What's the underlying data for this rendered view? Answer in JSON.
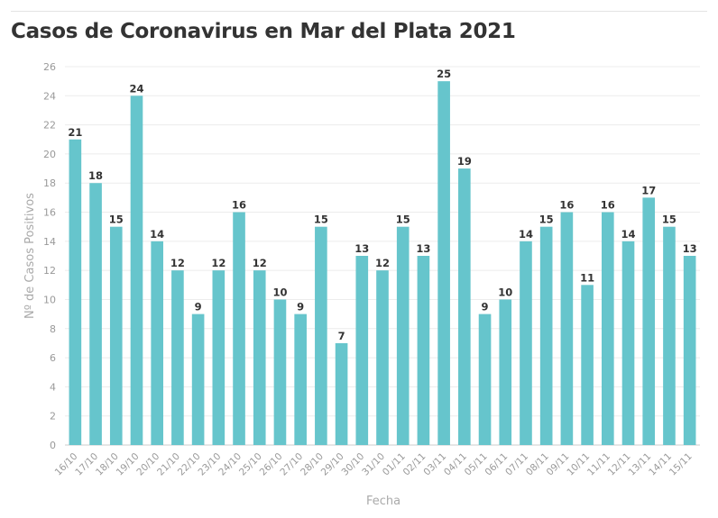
{
  "chart_data": {
    "type": "bar",
    "title": "Casos de Coronavirus en Mar del Plata 2021",
    "xlabel": "Fecha",
    "ylabel": "Nº de Casos Positivos",
    "ylim": [
      0,
      26
    ],
    "yticks": [
      0,
      2,
      4,
      6,
      8,
      10,
      12,
      14,
      16,
      18,
      20,
      22,
      24,
      26
    ],
    "grid": true,
    "bar_color": "#66c5cc",
    "categories": [
      "16/10",
      "17/10",
      "18/10",
      "19/10",
      "20/10",
      "21/10",
      "22/10",
      "23/10",
      "24/10",
      "25/10",
      "26/10",
      "27/10",
      "28/10",
      "29/10",
      "30/10",
      "31/10",
      "01/11",
      "02/11",
      "03/11",
      "04/11",
      "05/11",
      "06/11",
      "07/11",
      "08/11",
      "09/11",
      "10/11",
      "11/11",
      "12/11",
      "13/11",
      "14/11",
      "15/11"
    ],
    "values": [
      21,
      18,
      15,
      24,
      14,
      12,
      9,
      12,
      16,
      12,
      10,
      9,
      15,
      7,
      13,
      12,
      15,
      13,
      25,
      19,
      9,
      10,
      14,
      15,
      16,
      11,
      16,
      14,
      17,
      15,
      13
    ]
  }
}
